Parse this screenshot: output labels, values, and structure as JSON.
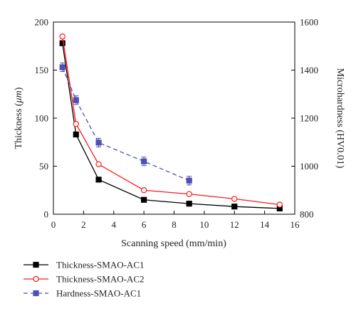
{
  "chart_data": {
    "type": "line",
    "title": "",
    "xlabel": "Scanning speed (mm/min)",
    "ylabel": "Thickness (μm)",
    "ylabel_parts": [
      "Thickness (",
      "μm",
      ")"
    ],
    "y2label": "Microhardness (HV0.01)",
    "xlim": [
      0,
      16
    ],
    "ylim": [
      0,
      200
    ],
    "y2lim": [
      800,
      1600
    ],
    "x_ticks": [
      0,
      2,
      4,
      6,
      8,
      10,
      12,
      14,
      16
    ],
    "y_ticks": [
      0,
      50,
      100,
      150,
      200
    ],
    "y2_ticks": [
      800,
      1000,
      1200,
      1400,
      1600
    ],
    "grid": false,
    "legend_position": "below plot, left",
    "series": [
      {
        "name": "Thickness-SMAO-AC1",
        "axis": "left",
        "color": "#000000",
        "marker": "filled-square",
        "line_style": "solid",
        "x": [
          0.6,
          1.5,
          3,
          6,
          9,
          12,
          15
        ],
        "y": [
          178,
          83,
          36,
          15,
          11,
          8,
          6
        ]
      },
      {
        "name": "Thickness-SMAO-AC2",
        "axis": "left",
        "color": "#ff1a1a",
        "marker": "open-circle",
        "line_style": "solid",
        "x": [
          0.6,
          1.5,
          3,
          6,
          9,
          12,
          15
        ],
        "y": [
          185,
          94,
          52,
          25,
          21,
          16,
          10
        ]
      },
      {
        "name": "Hardness-SMAO-AC1",
        "axis": "right",
        "color": "#5050b4",
        "marker": "filled-square",
        "line_style": "dashed",
        "x": [
          0.6,
          1.5,
          3,
          6,
          9
        ],
        "y": [
          1412,
          1275,
          1098,
          1020,
          940
        ],
        "error": [
          18,
          18,
          18,
          18,
          18
        ]
      }
    ]
  }
}
